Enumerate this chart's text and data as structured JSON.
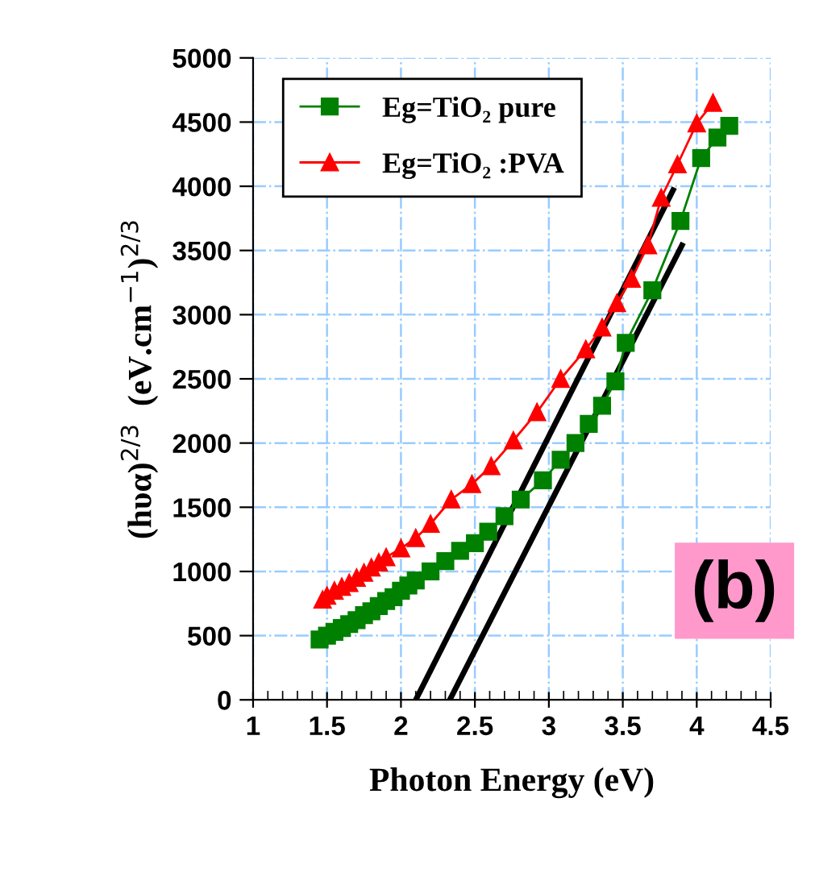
{
  "chart_data": {
    "type": "line",
    "xlabel": "Photon Energy (eV)",
    "ylabel": "(hυα)$^{2/3}$  (eV.cm$^{−1}$)$^{2/3}$",
    "xlim": [
      1,
      4.5
    ],
    "xticks": [
      1,
      1.5,
      2,
      2.5,
      3,
      3.5,
      4,
      4.5
    ],
    "ylim": [
      0,
      5000
    ],
    "yticks": [
      0,
      500,
      1000,
      1500,
      2000,
      2500,
      3000,
      3500,
      4000,
      4500,
      5000
    ],
    "grid": true,
    "legend": "top left",
    "line_style": "solid",
    "annotations": [
      "(b)"
    ],
    "series": [
      {
        "name": "Eg=TiO₂ pure",
        "color": "#008000",
        "marker": "square",
        "x": [
          1.45,
          1.5,
          1.55,
          1.6,
          1.65,
          1.7,
          1.75,
          1.8,
          1.85,
          1.9,
          1.95,
          2.0,
          2.05,
          2.1,
          2.2,
          2.3,
          2.4,
          2.5,
          2.59,
          2.7,
          2.81,
          2.96,
          3.08,
          3.18,
          3.27,
          3.36,
          3.45,
          3.52,
          3.7,
          3.89,
          4.03,
          4.14,
          4.22
        ],
        "values": [
          470,
          500,
          530,
          560,
          590,
          620,
          660,
          690,
          730,
          770,
          800,
          850,
          890,
          930,
          1000,
          1080,
          1160,
          1220,
          1310,
          1430,
          1560,
          1710,
          1870,
          2000,
          2150,
          2290,
          2480,
          2780,
          3190,
          3730,
          4220,
          4380,
          4470
        ]
      },
      {
        "name": "Eg=TiO₂ :PVA",
        "color": "#ff0000",
        "marker": "triangle",
        "x": [
          1.47,
          1.5,
          1.55,
          1.6,
          1.65,
          1.7,
          1.75,
          1.8,
          1.85,
          1.9,
          2.0,
          2.1,
          2.2,
          2.34,
          2.48,
          2.61,
          2.76,
          2.92,
          3.08,
          3.25,
          3.36,
          3.46,
          3.56,
          3.67,
          3.76,
          3.87,
          4.0,
          4.11
        ],
        "values": [
          780,
          810,
          850,
          880,
          910,
          950,
          990,
          1030,
          1070,
          1110,
          1180,
          1260,
          1370,
          1560,
          1680,
          1820,
          2020,
          2240,
          2500,
          2730,
          2900,
          3090,
          3280,
          3540,
          3910,
          4170,
          4490,
          4650
        ]
      },
      {
        "type": "line",
        "color": "#000000",
        "marker": "none",
        "x": [
          2.1,
          3.84
        ],
        "values": [
          0,
          3970
        ]
      },
      {
        "type": "line",
        "color": "#000000",
        "marker": "none",
        "x": [
          2.33,
          3.9
        ],
        "values": [
          0,
          3540
        ]
      }
    ]
  }
}
